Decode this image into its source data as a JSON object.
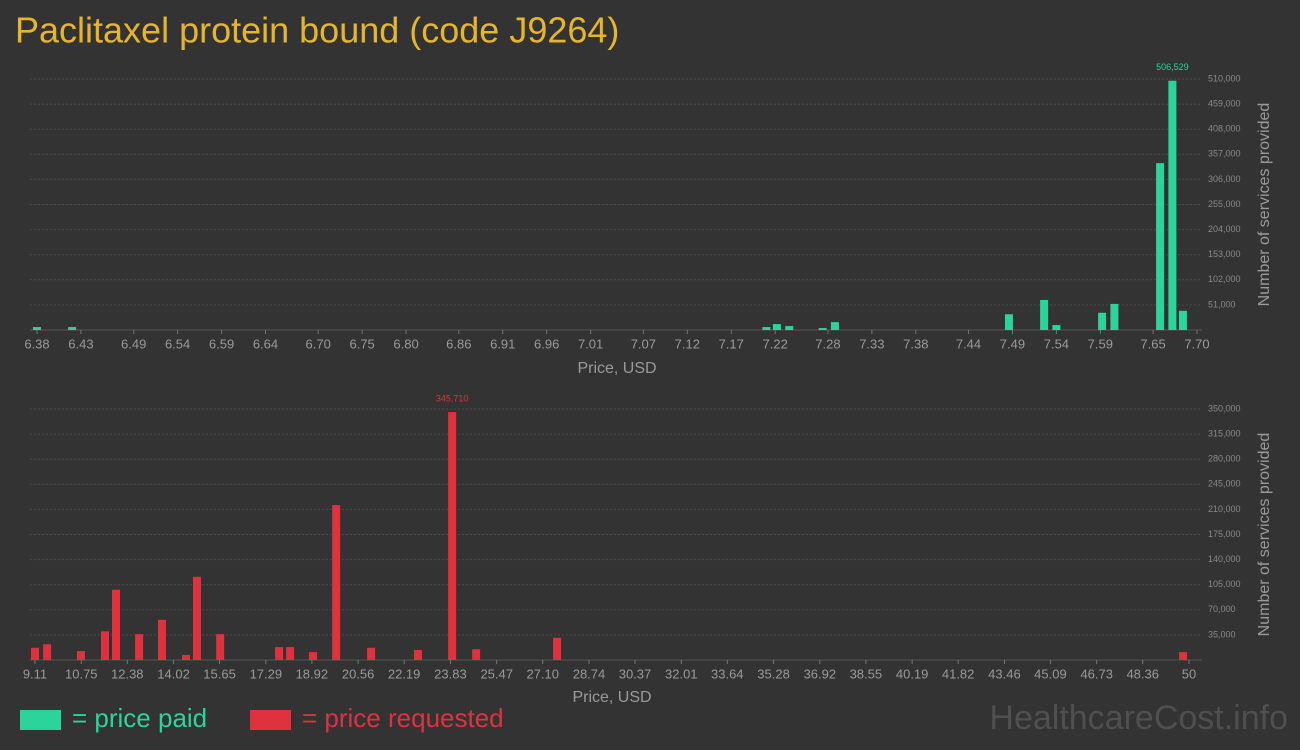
{
  "title": "Paclitaxel protein bound (code J9264)",
  "watermark": "HealthcareCost.info",
  "chart_data": [
    {
      "type": "bar",
      "xlabel": "Price, USD",
      "ylabel": "Number of services provided",
      "xlim": [
        6.38,
        7.7
      ],
      "xticks": [
        6.38,
        6.43,
        6.49,
        6.54,
        6.59,
        6.64,
        {
          "value": 6.7,
          "label": "6.70"
        },
        6.75,
        {
          "value": 6.8,
          "label": "6.80"
        },
        6.86,
        6.91,
        6.96,
        7.01,
        7.07,
        7.12,
        7.17,
        7.22,
        7.28,
        7.33,
        7.38,
        7.44,
        7.49,
        7.54,
        7.59,
        7.65,
        {
          "value": 7.7,
          "label": "7.70"
        }
      ],
      "ylim": [
        0,
        510000
      ],
      "yticks": [
        {
          "value": 51000,
          "label": "51,000"
        },
        {
          "value": 102000,
          "label": "102,000"
        },
        {
          "value": 153000,
          "label": "153,000"
        },
        {
          "value": 204000,
          "label": "204,000"
        },
        {
          "value": 255000,
          "label": "255,000"
        },
        {
          "value": 306000,
          "label": "306,000"
        },
        {
          "value": 357000,
          "label": "357,000"
        },
        {
          "value": 408000,
          "label": "408,000"
        },
        {
          "value": 459000,
          "label": "459,000"
        },
        {
          "value": 510000,
          "label": "510,000"
        }
      ],
      "grid": true,
      "series": [
        {
          "name": "= price paid",
          "color": "#2bd49b",
          "x": [
            6.38,
            6.42,
            7.21,
            7.222,
            7.236,
            7.274,
            7.288,
            7.486,
            7.526,
            7.54,
            7.592,
            7.606,
            7.658,
            7.672,
            7.684
          ],
          "values": [
            6000,
            6000,
            6000,
            12000,
            8000,
            4000,
            16000,
            32000,
            61000,
            10000,
            35000,
            53000,
            339000,
            506529,
            39000
          ],
          "value_labels": [
            null,
            null,
            null,
            null,
            null,
            null,
            null,
            null,
            null,
            null,
            null,
            null,
            null,
            "506,529",
            null
          ]
        }
      ]
    },
    {
      "type": "bar",
      "xlabel": "Price, USD",
      "ylabel": "Number of services provided",
      "xlim": [
        9.11,
        50
      ],
      "xticks": [
        9.11,
        10.75,
        12.38,
        14.02,
        15.65,
        17.29,
        18.92,
        20.56,
        22.19,
        23.83,
        25.47,
        {
          "value": 27.1,
          "label": "27.10"
        },
        28.74,
        30.37,
        32.01,
        33.64,
        35.28,
        36.92,
        38.55,
        40.19,
        41.82,
        43.46,
        45.09,
        46.73,
        48.36,
        50
      ],
      "ylim": [
        0,
        350000
      ],
      "yticks": [
        {
          "value": 35000,
          "label": "35,000"
        },
        {
          "value": 70000,
          "label": "70,000"
        },
        {
          "value": 105000,
          "label": "105,000"
        },
        {
          "value": 140000,
          "label": "140,000"
        },
        {
          "value": 175000,
          "label": "175,000"
        },
        {
          "value": 210000,
          "label": "210,000"
        },
        {
          "value": 245000,
          "label": "245,000"
        },
        {
          "value": 280000,
          "label": "280,000"
        },
        {
          "value": 315000,
          "label": "315,000"
        },
        {
          "value": 350000,
          "label": "350,000"
        }
      ],
      "grid": true,
      "series": [
        {
          "name": "= price requested",
          "color": "#e0313f",
          "x": [
            9.11,
            9.54,
            10.74,
            11.59,
            11.98,
            12.8,
            13.61,
            14.46,
            14.85,
            15.67,
            17.76,
            18.15,
            18.96,
            19.78,
            21.02,
            22.68,
            23.89,
            24.74,
            27.61,
            49.79
          ],
          "values": [
            17000,
            22000,
            12500,
            40000,
            98000,
            36000,
            56000,
            7000,
            116000,
            36000,
            18000,
            18000,
            11000,
            216000,
            17000,
            14000,
            345710,
            15000,
            31000,
            11000
          ],
          "value_labels": [
            null,
            null,
            null,
            null,
            null,
            null,
            null,
            null,
            null,
            null,
            null,
            null,
            null,
            null,
            null,
            null,
            "345,710",
            null,
            null,
            null
          ]
        }
      ]
    }
  ]
}
